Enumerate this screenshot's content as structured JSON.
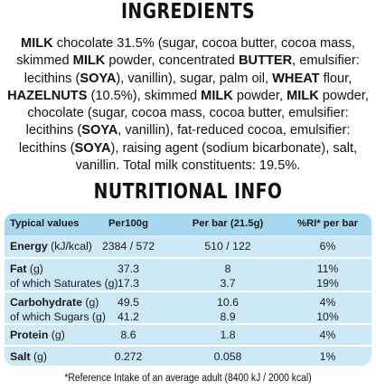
{
  "ingredients": {
    "heading": "INGREDIENTS",
    "segments": [
      {
        "t": "MILK",
        "b": true
      },
      {
        "t": " chocolate 31.5% (sugar, cocoa butter, cocoa mass, skimmed ",
        "b": false
      },
      {
        "t": "MILK",
        "b": true
      },
      {
        "t": " powder, concentrated ",
        "b": false
      },
      {
        "t": "BUTTER",
        "b": true
      },
      {
        "t": ", emulsifier: lecithins (",
        "b": false
      },
      {
        "t": "SOYA",
        "b": true
      },
      {
        "t": "), vanillin), sugar, palm oil, ",
        "b": false
      },
      {
        "t": "WHEAT",
        "b": true
      },
      {
        "t": " flour, ",
        "b": false
      },
      {
        "t": "HAZELNUTS",
        "b": true
      },
      {
        "t": " (10.5%), skimmed ",
        "b": false
      },
      {
        "t": "MILK",
        "b": true
      },
      {
        "t": " powder, ",
        "b": false
      },
      {
        "t": "MILK",
        "b": true
      },
      {
        "t": " powder, chocolate (sugar, cocoa mass, cocoa butter, emulsifier: lecithins (",
        "b": false
      },
      {
        "t": "SOYA",
        "b": true
      },
      {
        "t": ", vanillin), fat-reduced cocoa, emulsifier: lecithins (",
        "b": false
      },
      {
        "t": "SOYA",
        "b": true
      },
      {
        "t": "), raising agent (sodium bicarbonate), salt, vanillin. Total milk constituents: 19.5%.",
        "b": false
      }
    ]
  },
  "nutrition": {
    "heading": "NUTRITIONAL INFO",
    "headers": {
      "label": "Typical values",
      "per100": "Per100g",
      "perbar": "Per bar (21.5g)",
      "ri": "%RI* per bar"
    },
    "groups": [
      {
        "rows": [
          {
            "name": "Energy",
            "unit": " (kJ/kcal)",
            "bold": true,
            "per100": "2384 / 572",
            "perbar": "510 / 122",
            "ri": "6%"
          }
        ]
      },
      {
        "rows": [
          {
            "name": "Fat",
            "unit": " (g)",
            "bold": true,
            "per100": "37.3",
            "perbar": "8",
            "ri": "11%"
          },
          {
            "name": "of which Saturates (g)",
            "unit": "",
            "bold": false,
            "per100": "17.3",
            "perbar": "3.7",
            "ri": "19%"
          }
        ]
      },
      {
        "rows": [
          {
            "name": "Carbohydrate",
            "unit": " (g)",
            "bold": true,
            "per100": "49.5",
            "perbar": "10.6",
            "ri": "4%"
          },
          {
            "name": "of which Sugars (g)",
            "unit": "",
            "bold": false,
            "per100": "41.2",
            "perbar": "8.9",
            "ri": "10%"
          }
        ]
      },
      {
        "rows": [
          {
            "name": "Protein",
            "unit": " (g)",
            "bold": true,
            "per100": "8.6",
            "perbar": "1.8",
            "ri": "4%"
          }
        ]
      },
      {
        "rows": [
          {
            "name": "Salt",
            "unit": " (g)",
            "bold": true,
            "per100": "0.272",
            "perbar": "0.058",
            "ri": "1%"
          }
        ]
      }
    ],
    "footnote": "*Reference Intake of an average adult (8400 kJ / 2000 kcal)"
  },
  "colors": {
    "table_background": "#cde9f6",
    "table_header": "#a7d6ef",
    "separator": "#ffffff"
  }
}
